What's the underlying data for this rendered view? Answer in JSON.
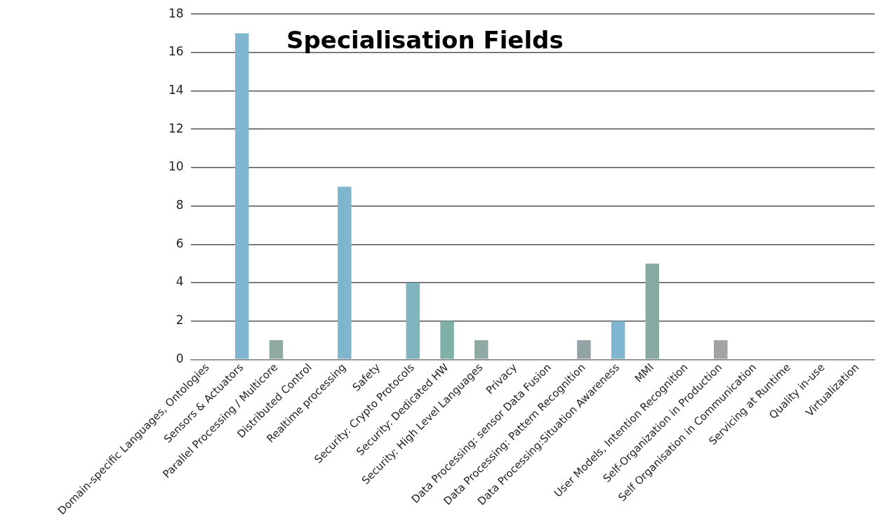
{
  "chart_data": {
    "type": "bar",
    "title": "Specialisation Fields",
    "categories": [
      "Domain-specific Languages, Ontologies",
      "Sensors & Actuators",
      "Parallel Processing / Multicore",
      "Distributed Control",
      "Realtime processing",
      "Safety",
      "Security: Crypto Protocols",
      "Security: Dedicated HW",
      "Security: High Level Languages",
      "Privacy",
      "Data Processing: sensor Data Fusion",
      "Data Processing: Pattern Recognition",
      "Data Processing:Situation Awareness",
      "MMI",
      "User Models, Intention Recognition",
      "Self-Organization in Production",
      "Self Organisation in Communication",
      "Servicing at Runtime",
      "Quality in-use",
      "Virtualization"
    ],
    "values": [
      0,
      17,
      1,
      0,
      9,
      0,
      4,
      2,
      1,
      0,
      0,
      1,
      2,
      5,
      0,
      1,
      0,
      0,
      0,
      0
    ],
    "colors": [
      "#7fb6cf",
      "#7fb6cf",
      "#8fa9a3",
      "#7fb6cf",
      "#7fb6cf",
      "#7fb6cf",
      "#80b5bf",
      "#7fb0a8",
      "#8fa9a3",
      "#7fb6cf",
      "#7fb6cf",
      "#94a4a6",
      "#7fb6cf",
      "#89aaa3",
      "#7fb6cf",
      "#a3a3a3",
      "#7fb6cf",
      "#7fb6cf",
      "#7fb6cf",
      "#7fb6cf"
    ],
    "ylim": [
      0,
      18
    ],
    "yticks": [
      0,
      2,
      4,
      6,
      8,
      10,
      12,
      14,
      16,
      18
    ],
    "grid": "y",
    "legend": false
  }
}
